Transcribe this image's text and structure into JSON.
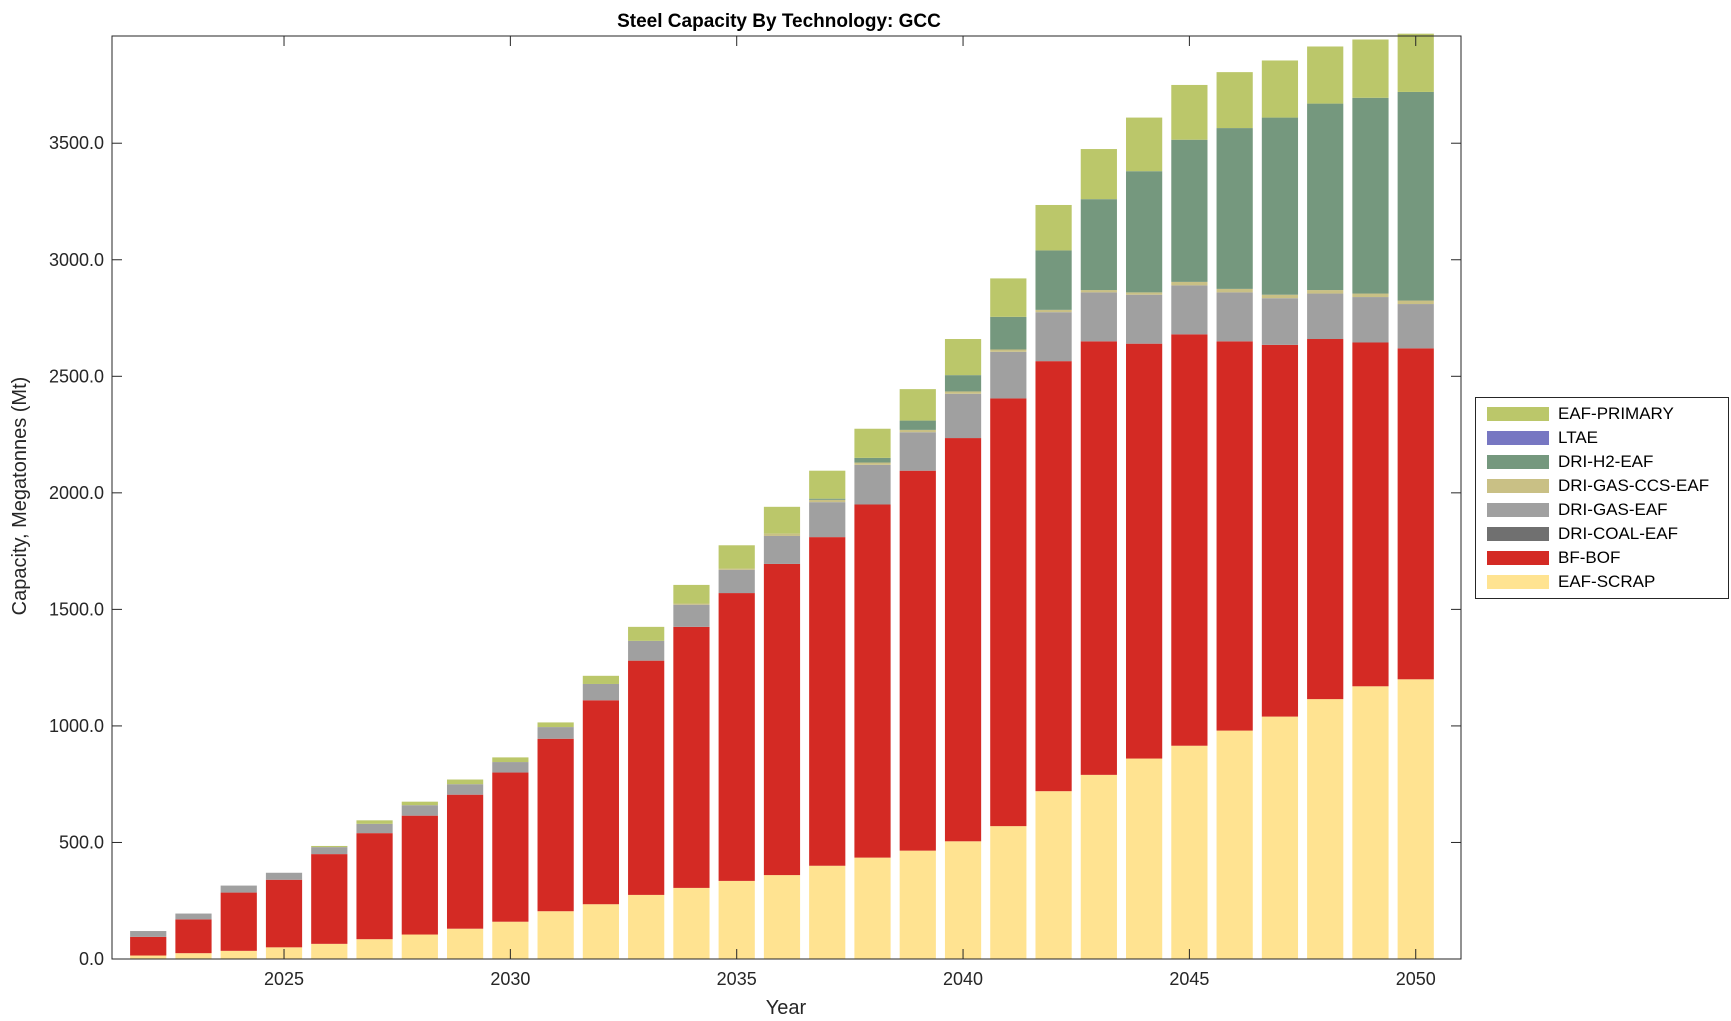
{
  "chart_data": {
    "type": "bar",
    "stacked": true,
    "title": "Steel Capacity By Technology: GCC",
    "xlabel": "Year",
    "ylabel": "Capacity, Megatonnes (Mt)",
    "xlim": [
      2021.2,
      2051.0
    ],
    "ylim": [
      0,
      3960
    ],
    "x_ticks": [
      2025,
      2030,
      2035,
      2040,
      2045,
      2050
    ],
    "y_ticks": [
      0,
      500,
      1000,
      1500,
      2000,
      2500,
      3000,
      3500
    ],
    "y_tick_labels": [
      "0.0",
      "500.0",
      "1000.0",
      "1500.0",
      "2000.0",
      "2500.0",
      "3000.0",
      "3500.0"
    ],
    "legend_position": "outside-right",
    "grid": false,
    "x": [
      2022,
      2023,
      2024,
      2025,
      2026,
      2027,
      2028,
      2029,
      2030,
      2031,
      2032,
      2033,
      2034,
      2035,
      2036,
      2037,
      2038,
      2039,
      2040,
      2041,
      2042,
      2043,
      2044,
      2045,
      2046,
      2047,
      2048,
      2049,
      2050
    ],
    "series": [
      {
        "name": "EAF-SCRAP",
        "color": "#ffe391",
        "values": [
          15,
          25,
          35,
          50,
          65,
          85,
          105,
          130,
          160,
          205,
          235,
          275,
          305,
          335,
          360,
          400,
          435,
          465,
          505,
          570,
          720,
          790,
          860,
          915,
          980,
          1040,
          1115,
          1170,
          1200
        ]
      },
      {
        "name": "BF-BOF",
        "color": "#d42a24",
        "values": [
          80,
          145,
          250,
          290,
          385,
          455,
          510,
          575,
          640,
          740,
          875,
          1005,
          1120,
          1235,
          1335,
          1410,
          1515,
          1630,
          1730,
          1835,
          1845,
          1860,
          1780,
          1765,
          1670,
          1595,
          1545,
          1475,
          1420
        ]
      },
      {
        "name": "DRI-COAL-EAF",
        "color": "#707070",
        "values": [
          0,
          0,
          0,
          0,
          0,
          0,
          0,
          0,
          0,
          0,
          0,
          0,
          0,
          0,
          0,
          0,
          0,
          0,
          0,
          0,
          0,
          0,
          0,
          0,
          0,
          0,
          0,
          0,
          0
        ]
      },
      {
        "name": "DRI-GAS-EAF",
        "color": "#a0a0a0",
        "values": [
          25,
          25,
          30,
          30,
          30,
          40,
          45,
          45,
          45,
          50,
          70,
          85,
          95,
          100,
          120,
          150,
          170,
          165,
          190,
          200,
          210,
          210,
          210,
          210,
          210,
          200,
          195,
          195,
          190
        ]
      },
      {
        "name": "DRI-GAS-CCS-EAF",
        "color": "#c9c085",
        "values": [
          0,
          0,
          0,
          0,
          0,
          0,
          0,
          0,
          0,
          0,
          0,
          0,
          5,
          5,
          10,
          10,
          10,
          10,
          10,
          10,
          10,
          10,
          10,
          15,
          15,
          15,
          15,
          15,
          15
        ]
      },
      {
        "name": "DRI-H2-EAF",
        "color": "#75987e",
        "values": [
          0,
          0,
          0,
          0,
          0,
          0,
          0,
          0,
          0,
          0,
          0,
          0,
          0,
          0,
          0,
          5,
          20,
          40,
          70,
          140,
          255,
          390,
          520,
          610,
          690,
          760,
          800,
          840,
          895
        ]
      },
      {
        "name": "LTAE",
        "color": "#7777c2",
        "values": [
          0,
          0,
          0,
          0,
          0,
          0,
          0,
          0,
          0,
          0,
          0,
          0,
          0,
          0,
          0,
          0,
          0,
          0,
          0,
          0,
          0,
          0,
          0,
          0,
          0,
          0,
          0,
          0,
          0
        ]
      },
      {
        "name": "EAF-PRIMARY",
        "color": "#bbc76a",
        "values": [
          0,
          0,
          0,
          0,
          5,
          15,
          15,
          20,
          20,
          20,
          35,
          60,
          80,
          100,
          115,
          120,
          125,
          135,
          155,
          165,
          195,
          215,
          230,
          235,
          240,
          245,
          245,
          250,
          250
        ]
      }
    ],
    "legend_order": [
      "EAF-PRIMARY",
      "LTAE",
      "DRI-H2-EAF",
      "DRI-GAS-CCS-EAF",
      "DRI-GAS-EAF",
      "DRI-COAL-EAF",
      "BF-BOF",
      "EAF-SCRAP"
    ]
  }
}
